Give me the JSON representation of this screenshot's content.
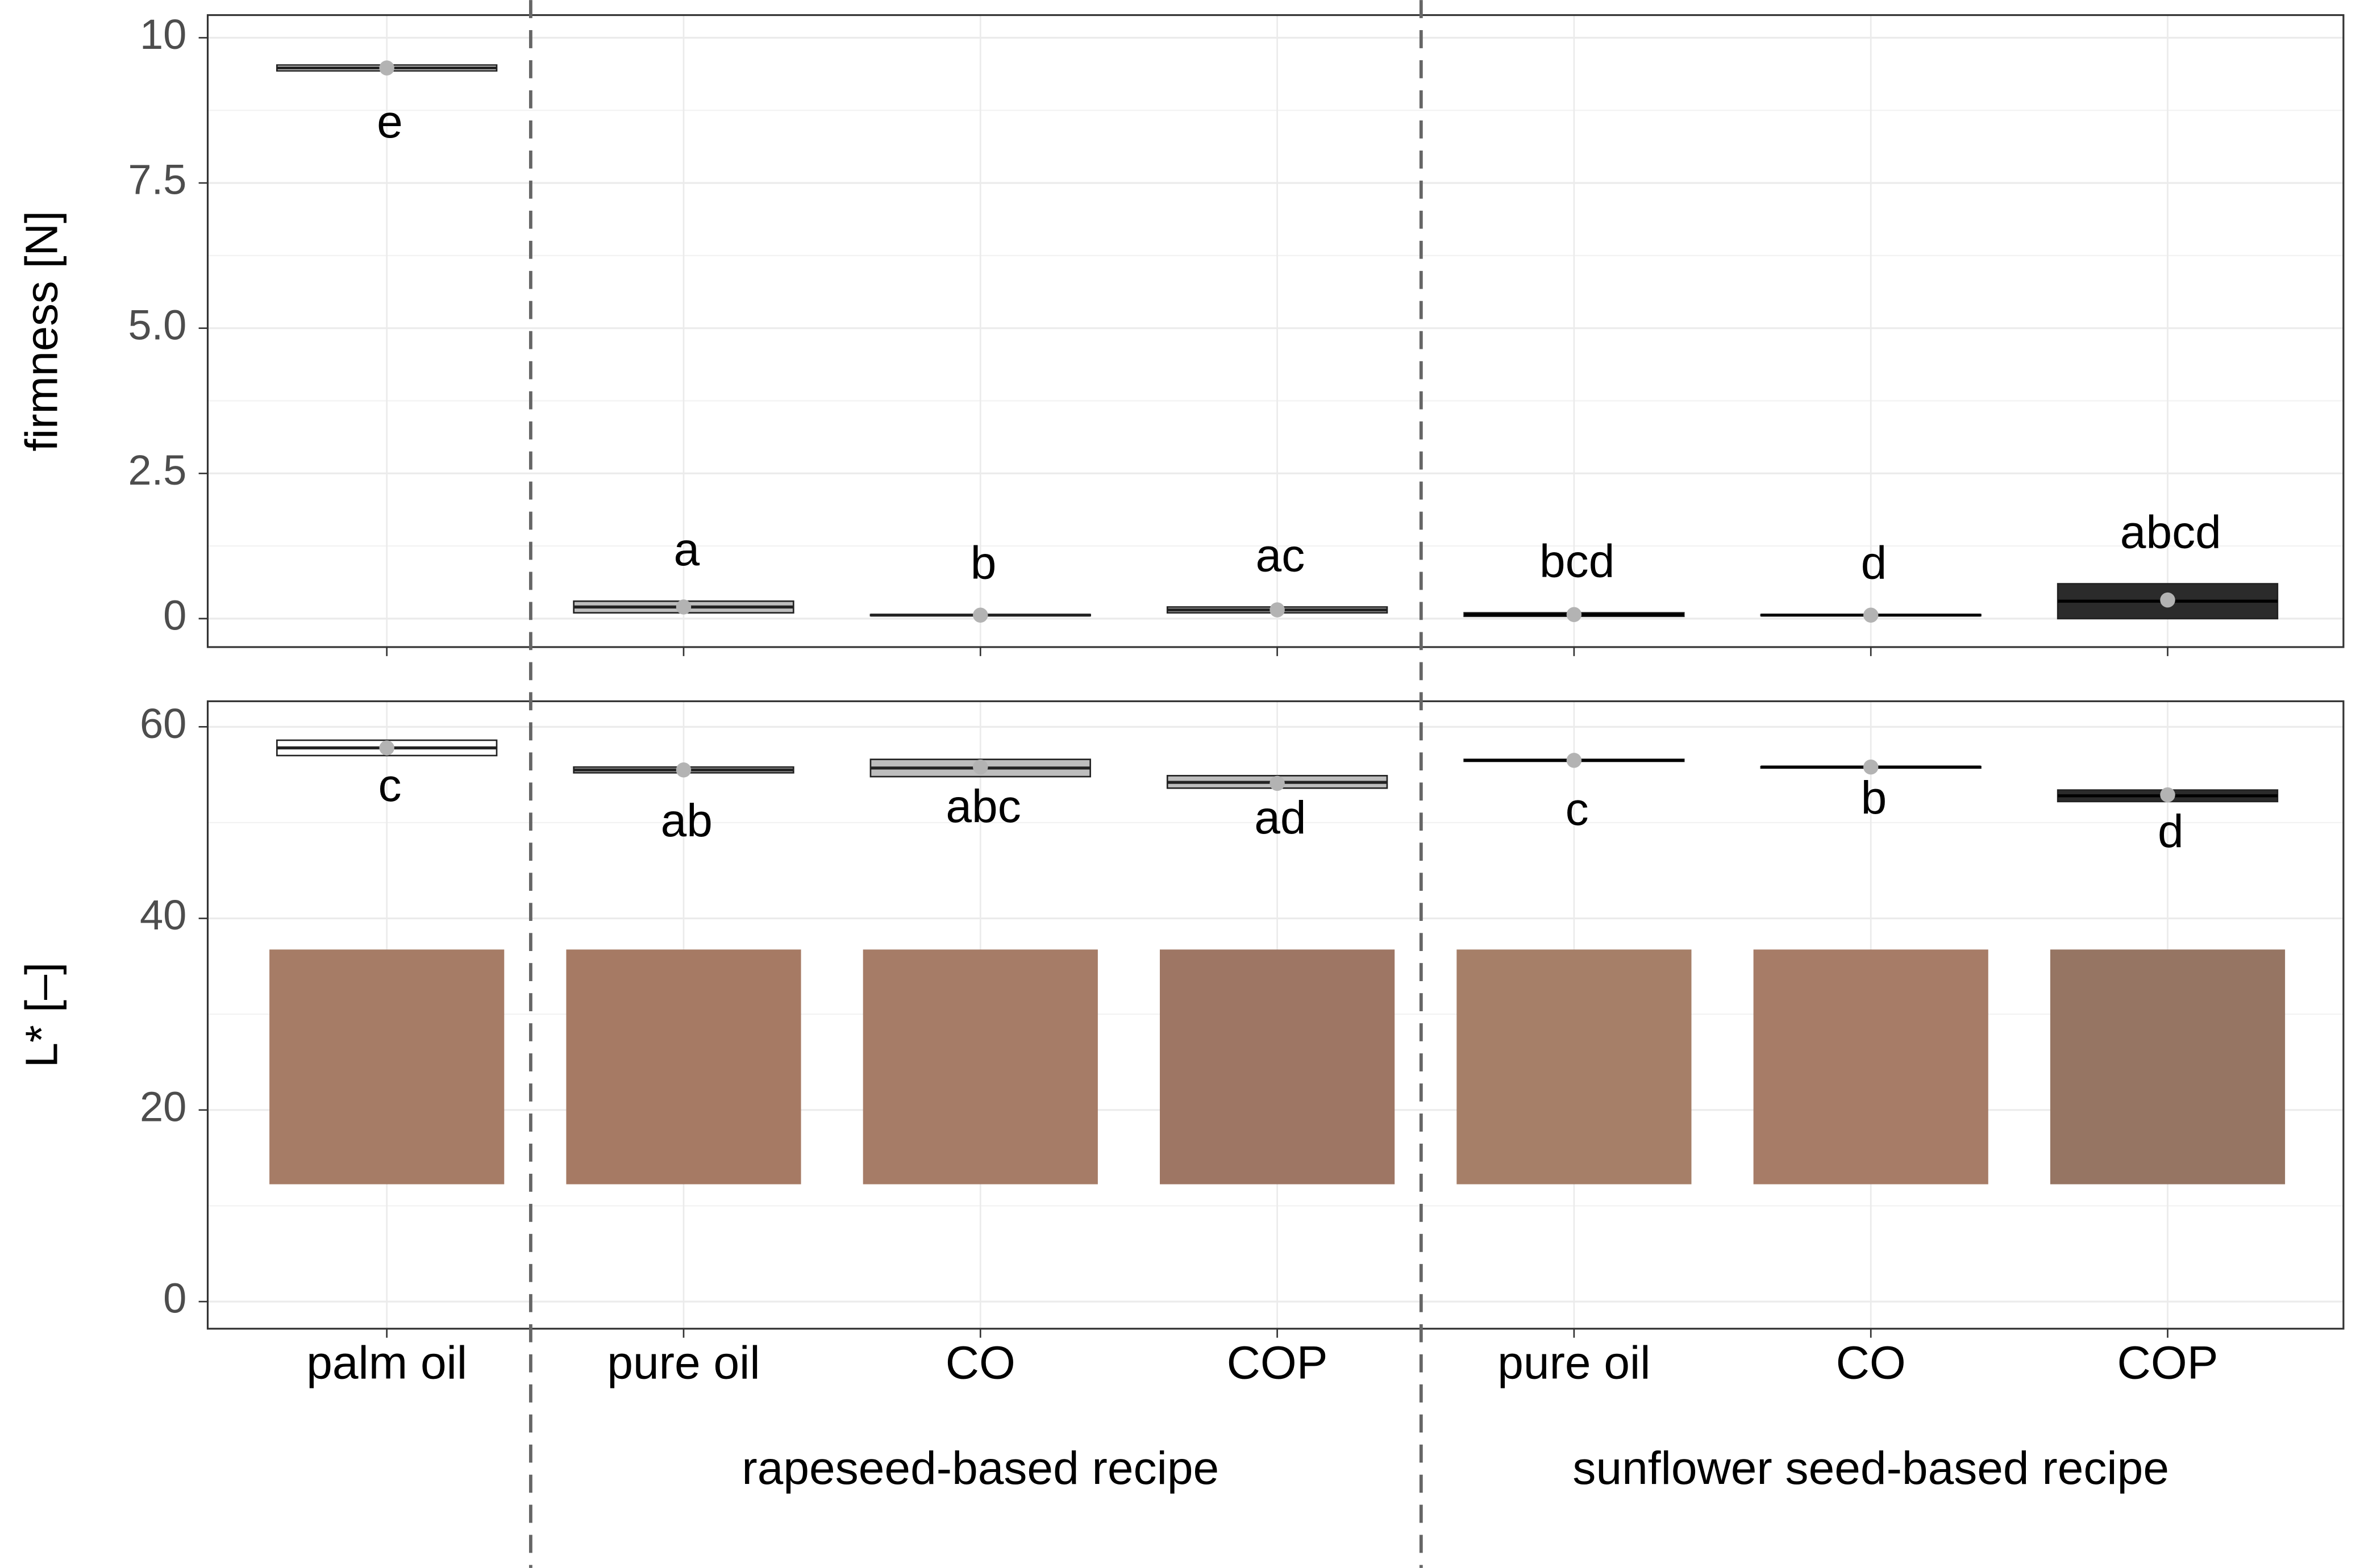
{
  "chart_data": {
    "type": "box",
    "groups": [
      {
        "categories": [
          "palm oil"
        ]
      },
      {
        "name": "rapeseed-based recipe",
        "categories": [
          "pure oil",
          "CO",
          "COP"
        ]
      },
      {
        "name": "sunflower seed-based recipe",
        "categories": [
          "pure oil",
          "CO",
          "COP"
        ]
      }
    ],
    "grid": true,
    "panels": [
      {
        "y_label": "firmness [N]",
        "ylim": [
          -0.49,
          10.39
        ],
        "yticks": [
          0,
          2.5,
          {
            "value": 5,
            "label": "5.0"
          },
          7.5,
          10
        ],
        "boxes": [
          {
            "q1": 9.43,
            "median": 9.48,
            "q3": 9.53,
            "mean": 9.48,
            "letter": "e",
            "color": "#ffffff"
          },
          {
            "q1": 0.1,
            "median": 0.2,
            "q3": 0.3,
            "mean": 0.2,
            "letter": "a",
            "color": "#bdbdbd"
          },
          {
            "q1": 0.05,
            "median": 0.06,
            "q3": 0.07,
            "mean": 0.06,
            "letter": "b",
            "color": "#bdbdbd"
          },
          {
            "q1": 0.1,
            "median": 0.15,
            "q3": 0.2,
            "mean": 0.15,
            "letter": "ac",
            "color": "#bdbdbd"
          },
          {
            "q1": 0.04,
            "median": 0.07,
            "q3": 0.1,
            "mean": 0.07,
            "letter": "bcd",
            "color": "#2b2b2b"
          },
          {
            "q1": 0.05,
            "median": 0.06,
            "q3": 0.07,
            "mean": 0.06,
            "letter": "d",
            "color": "#2b2b2b"
          },
          {
            "q1": 0.0,
            "median": 0.3,
            "q3": 0.6,
            "mean": 0.32,
            "letter": "abcd",
            "color": "#2b2b2b"
          }
        ]
      },
      {
        "y_label": "L* [–]",
        "ylim": [
          -2.83,
          62.67
        ],
        "yticks": [
          0,
          20,
          40,
          60
        ],
        "swatch_colors": [
          "#a67c66",
          "#a67a64",
          "#a67c67",
          "#9e7664",
          "#a67f68",
          "#a77c67",
          "#967563"
        ],
        "boxes": [
          {
            "q1": 57.0,
            "median": 57.8,
            "q3": 58.6,
            "mean": 57.8,
            "letter": "c",
            "color": "#ffffff"
          },
          {
            "q1": 55.2,
            "median": 55.5,
            "q3": 55.8,
            "mean": 55.5,
            "letter": "ab",
            "color": "#bdbdbd"
          },
          {
            "q1": 54.8,
            "median": 55.7,
            "q3": 56.6,
            "mean": 55.8,
            "letter": "abc",
            "color": "#bdbdbd"
          },
          {
            "q1": 53.6,
            "median": 54.2,
            "q3": 54.9,
            "mean": 54.1,
            "letter": "ad",
            "color": "#bdbdbd"
          },
          {
            "q1": 56.4,
            "median": 56.5,
            "q3": 56.6,
            "mean": 56.5,
            "letter": "c",
            "color": "#2b2b2b"
          },
          {
            "q1": 55.7,
            "median": 55.8,
            "q3": 55.85,
            "mean": 55.8,
            "letter": "b",
            "color": "#2b2b2b"
          },
          {
            "q1": 52.2,
            "median": 52.8,
            "q3": 53.4,
            "mean": 52.9,
            "letter": "d",
            "color": "#2b2b2b"
          }
        ]
      }
    ]
  }
}
